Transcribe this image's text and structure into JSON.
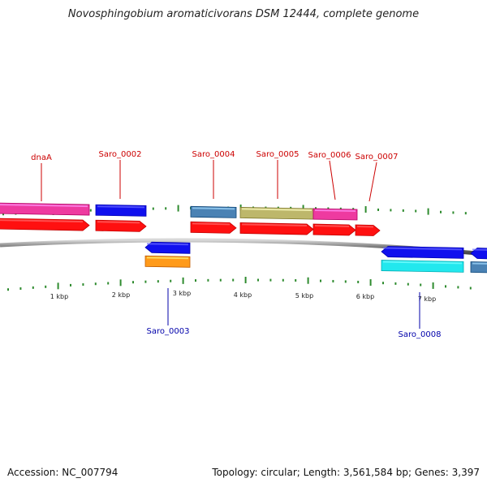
{
  "title": "Novosphingobium aromaticivorans DSM 12444, complete genome",
  "accession": "Accession: NC_007794",
  "summary": "Topology: circular; Length: 3,561,584 bp; Genes: 3,397",
  "colors": {
    "forward_label": "#cc0000",
    "reverse_label": "#0000aa",
    "backbone": "#8a8a8a",
    "tick": "#2e8b2e"
  },
  "ticks": [
    "1 kbp",
    "2 kbp",
    "3 kbp",
    "4 kbp",
    "5 kbp",
    "6 kbp",
    "7 kbp"
  ],
  "genes": [
    {
      "label": "dnaA",
      "strand": "forward",
      "color": "#ee3aa0"
    },
    {
      "label": "Saro_0002",
      "strand": "forward",
      "color": "#1010ee"
    },
    {
      "label": "Saro_0003",
      "strand": "reverse",
      "color": "#1010ee"
    },
    {
      "label": "Saro_0004",
      "strand": "forward",
      "color": "#4a82b4"
    },
    {
      "label": "Saro_0005",
      "strand": "forward",
      "color": "#bdb76b"
    },
    {
      "label": "Saro_0006",
      "strand": "forward",
      "color": "#ee3aa0"
    },
    {
      "label": "Saro_0007",
      "strand": "forward",
      "color": null
    },
    {
      "label": "Saro_0008",
      "strand": "reverse",
      "color": "#1010ee"
    }
  ]
}
